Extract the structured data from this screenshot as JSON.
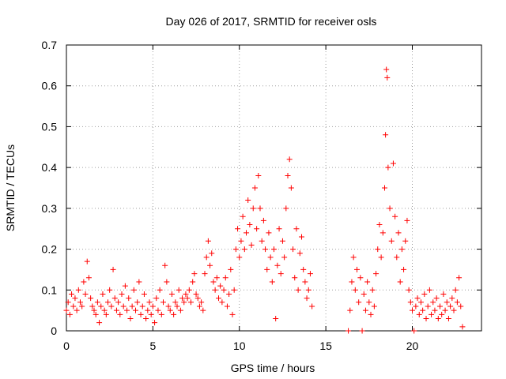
{
  "chart_data": {
    "type": "scatter",
    "title": "Day 026 of 2017, SRMTID for receiver osls",
    "xlabel": "GPS time / hours",
    "ylabel": "SRMTID / TECUs",
    "xlim": [
      0,
      24
    ],
    "ylim": [
      0,
      0.7
    ],
    "x_ticks": [
      0,
      5,
      10,
      15,
      20
    ],
    "y_ticks": [
      0,
      0.1,
      0.2,
      0.3,
      0.4,
      0.5,
      0.6,
      0.7
    ],
    "x_tick_labels": [
      "0",
      "5",
      "10",
      "15",
      "20"
    ],
    "y_tick_labels": [
      "0",
      "0.1",
      "0.2",
      "0.3",
      "0.4",
      "0.5",
      "0.6",
      "0.7"
    ],
    "grid": true,
    "marker": "+",
    "color": "#ff0000",
    "series": [
      {
        "name": "SRMTID",
        "points": [
          [
            0.0,
            0.05
          ],
          [
            0.1,
            0.07
          ],
          [
            0.2,
            0.04
          ],
          [
            0.3,
            0.09
          ],
          [
            0.4,
            0.06
          ],
          [
            0.5,
            0.08
          ],
          [
            0.6,
            0.05
          ],
          [
            0.7,
            0.1
          ],
          [
            0.8,
            0.07
          ],
          [
            0.9,
            0.06
          ],
          [
            1.0,
            0.12
          ],
          [
            1.1,
            0.09
          ],
          [
            1.2,
            0.17
          ],
          [
            1.3,
            0.13
          ],
          [
            1.4,
            0.08
          ],
          [
            1.5,
            0.06
          ],
          [
            1.6,
            0.05
          ],
          [
            1.7,
            0.04
          ],
          [
            1.8,
            0.07
          ],
          [
            1.9,
            0.02
          ],
          [
            2.0,
            0.06
          ],
          [
            2.1,
            0.09
          ],
          [
            2.2,
            0.05
          ],
          [
            2.3,
            0.04
          ],
          [
            2.4,
            0.07
          ],
          [
            2.5,
            0.1
          ],
          [
            2.6,
            0.06
          ],
          [
            2.7,
            0.15
          ],
          [
            2.8,
            0.08
          ],
          [
            2.9,
            0.05
          ],
          [
            3.0,
            0.07
          ],
          [
            3.1,
            0.04
          ],
          [
            3.2,
            0.09
          ],
          [
            3.3,
            0.06
          ],
          [
            3.4,
            0.11
          ],
          [
            3.5,
            0.05
          ],
          [
            3.6,
            0.08
          ],
          [
            3.7,
            0.03
          ],
          [
            3.8,
            0.06
          ],
          [
            3.9,
            0.1
          ],
          [
            4.0,
            0.05
          ],
          [
            4.1,
            0.07
          ],
          [
            4.2,
            0.12
          ],
          [
            4.3,
            0.04
          ],
          [
            4.4,
            0.06
          ],
          [
            4.5,
            0.09
          ],
          [
            4.6,
            0.03
          ],
          [
            4.7,
            0.05
          ],
          [
            4.8,
            0.07
          ],
          [
            4.9,
            0.04
          ],
          [
            5.0,
            0.06
          ],
          [
            5.1,
            0.02
          ],
          [
            5.2,
            0.08
          ],
          [
            5.3,
            0.05
          ],
          [
            5.4,
            0.1
          ],
          [
            5.5,
            0.04
          ],
          [
            5.6,
            0.07
          ],
          [
            5.7,
            0.16
          ],
          [
            5.8,
            0.12
          ],
          [
            5.9,
            0.06
          ],
          [
            6.0,
            0.05
          ],
          [
            6.1,
            0.09
          ],
          [
            6.2,
            0.04
          ],
          [
            6.3,
            0.07
          ],
          [
            6.4,
            0.06
          ],
          [
            6.5,
            0.1
          ],
          [
            6.6,
            0.05
          ],
          [
            6.7,
            0.08
          ],
          [
            6.8,
            0.07
          ],
          [
            6.9,
            0.09
          ],
          [
            7.0,
            0.08
          ],
          [
            7.1,
            0.1
          ],
          [
            7.2,
            0.07
          ],
          [
            7.3,
            0.12
          ],
          [
            7.4,
            0.14
          ],
          [
            7.5,
            0.09
          ],
          [
            7.6,
            0.08
          ],
          [
            7.7,
            0.06
          ],
          [
            7.8,
            0.07
          ],
          [
            7.9,
            0.05
          ],
          [
            8.0,
            0.14
          ],
          [
            8.1,
            0.18
          ],
          [
            8.2,
            0.22
          ],
          [
            8.3,
            0.16
          ],
          [
            8.4,
            0.19
          ],
          [
            8.5,
            0.12
          ],
          [
            8.6,
            0.1
          ],
          [
            8.7,
            0.13
          ],
          [
            8.8,
            0.08
          ],
          [
            8.9,
            0.11
          ],
          [
            9.0,
            0.07
          ],
          [
            9.1,
            0.1
          ],
          [
            9.2,
            0.13
          ],
          [
            9.3,
            0.06
          ],
          [
            9.4,
            0.09
          ],
          [
            9.5,
            0.15
          ],
          [
            9.6,
            0.04
          ],
          [
            9.7,
            0.1
          ],
          [
            9.8,
            0.2
          ],
          [
            9.9,
            0.25
          ],
          [
            10.0,
            0.18
          ],
          [
            10.1,
            0.22
          ],
          [
            10.2,
            0.28
          ],
          [
            10.3,
            0.2
          ],
          [
            10.4,
            0.24
          ],
          [
            10.5,
            0.32
          ],
          [
            10.6,
            0.26
          ],
          [
            10.7,
            0.21
          ],
          [
            10.8,
            0.3
          ],
          [
            10.9,
            0.35
          ],
          [
            11.0,
            0.25
          ],
          [
            11.1,
            0.38
          ],
          [
            11.2,
            0.3
          ],
          [
            11.3,
            0.22
          ],
          [
            11.4,
            0.27
          ],
          [
            11.5,
            0.2
          ],
          [
            11.6,
            0.15
          ],
          [
            11.7,
            0.24
          ],
          [
            11.8,
            0.18
          ],
          [
            11.9,
            0.12
          ],
          [
            12.0,
            0.2
          ],
          [
            12.1,
            0.03
          ],
          [
            12.2,
            0.16
          ],
          [
            12.3,
            0.25
          ],
          [
            12.4,
            0.14
          ],
          [
            12.5,
            0.22
          ],
          [
            12.6,
            0.18
          ],
          [
            12.7,
            0.3
          ],
          [
            12.8,
            0.38
          ],
          [
            12.9,
            0.42
          ],
          [
            13.0,
            0.35
          ],
          [
            13.1,
            0.2
          ],
          [
            13.2,
            0.13
          ],
          [
            13.3,
            0.25
          ],
          [
            13.4,
            0.1
          ],
          [
            13.5,
            0.19
          ],
          [
            13.6,
            0.23
          ],
          [
            13.7,
            0.15
          ],
          [
            13.8,
            0.12
          ],
          [
            13.9,
            0.08
          ],
          [
            14.0,
            0.1
          ],
          [
            14.1,
            0.14
          ],
          [
            14.2,
            0.06
          ],
          [
            16.3,
            0.0
          ],
          [
            16.4,
            0.05
          ],
          [
            16.5,
            0.12
          ],
          [
            16.6,
            0.18
          ],
          [
            16.7,
            0.1
          ],
          [
            16.8,
            0.15
          ],
          [
            16.9,
            0.07
          ],
          [
            17.0,
            0.13
          ],
          [
            17.1,
            0.0
          ],
          [
            17.2,
            0.09
          ],
          [
            17.3,
            0.05
          ],
          [
            17.4,
            0.12
          ],
          [
            17.5,
            0.07
          ],
          [
            17.6,
            0.04
          ],
          [
            17.7,
            0.1
          ],
          [
            17.8,
            0.06
          ],
          [
            17.9,
            0.14
          ],
          [
            18.0,
            0.2
          ],
          [
            18.1,
            0.26
          ],
          [
            18.2,
            0.18
          ],
          [
            18.3,
            0.24
          ],
          [
            18.4,
            0.35
          ],
          [
            18.45,
            0.48
          ],
          [
            18.5,
            0.64
          ],
          [
            18.55,
            0.62
          ],
          [
            18.6,
            0.4
          ],
          [
            18.7,
            0.3
          ],
          [
            18.8,
            0.22
          ],
          [
            18.9,
            0.41
          ],
          [
            19.0,
            0.28
          ],
          [
            19.1,
            0.18
          ],
          [
            19.2,
            0.24
          ],
          [
            19.3,
            0.12
          ],
          [
            19.4,
            0.2
          ],
          [
            19.5,
            0.15
          ],
          [
            19.6,
            0.22
          ],
          [
            19.7,
            0.27
          ],
          [
            19.8,
            0.1
          ],
          [
            19.9,
            0.07
          ],
          [
            20.0,
            0.05
          ],
          [
            20.1,
            0.0
          ],
          [
            20.2,
            0.06
          ],
          [
            20.3,
            0.08
          ],
          [
            20.4,
            0.04
          ],
          [
            20.5,
            0.07
          ],
          [
            20.6,
            0.05
          ],
          [
            20.7,
            0.09
          ],
          [
            20.8,
            0.03
          ],
          [
            20.9,
            0.06
          ],
          [
            21.0,
            0.1
          ],
          [
            21.1,
            0.04
          ],
          [
            21.2,
            0.07
          ],
          [
            21.3,
            0.05
          ],
          [
            21.4,
            0.08
          ],
          [
            21.5,
            0.03
          ],
          [
            21.6,
            0.06
          ],
          [
            21.7,
            0.04
          ],
          [
            21.8,
            0.09
          ],
          [
            21.9,
            0.05
          ],
          [
            22.0,
            0.07
          ],
          [
            22.1,
            0.03
          ],
          [
            22.2,
            0.06
          ],
          [
            22.3,
            0.08
          ],
          [
            22.4,
            0.05
          ],
          [
            22.5,
            0.1
          ],
          [
            22.6,
            0.07
          ],
          [
            22.7,
            0.13
          ],
          [
            22.8,
            0.06
          ],
          [
            22.9,
            0.01
          ]
        ]
      }
    ]
  }
}
